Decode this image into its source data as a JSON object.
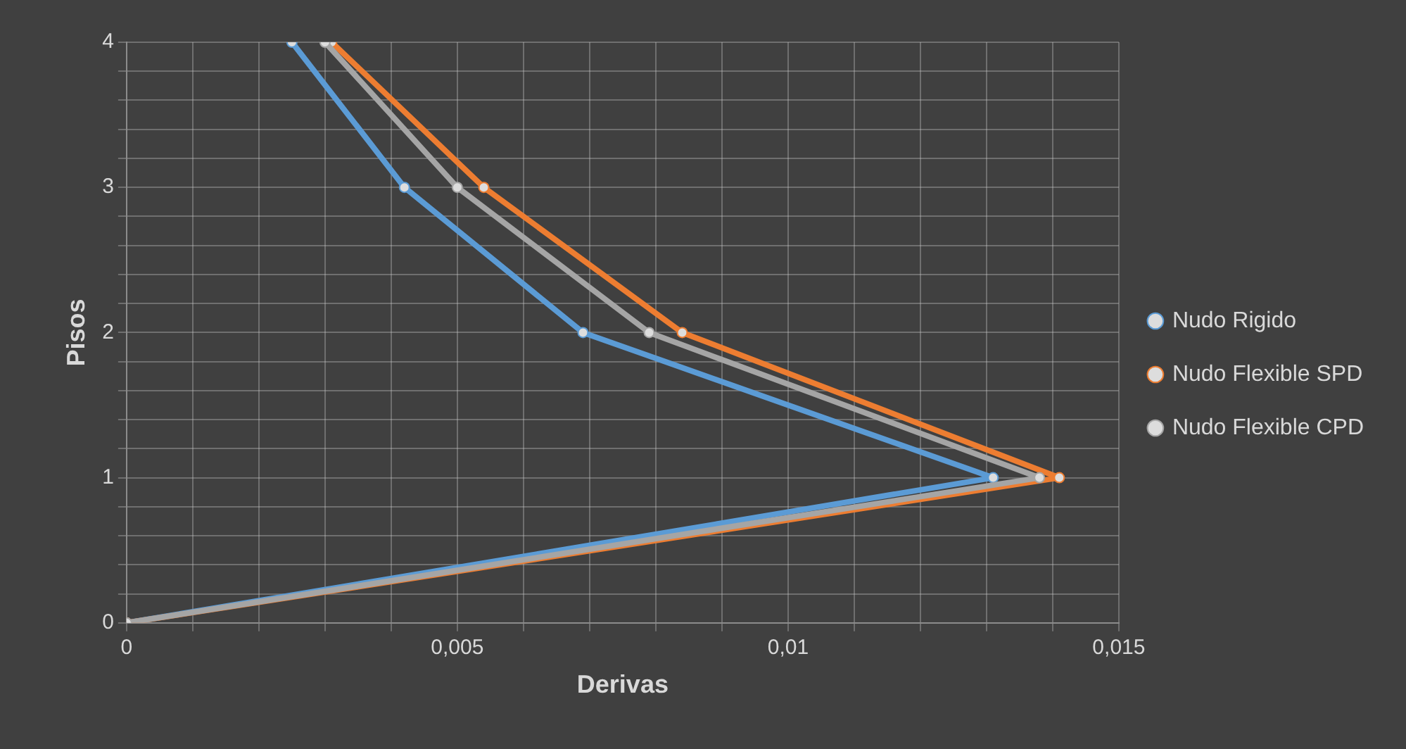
{
  "chart_data": {
    "type": "line",
    "xlabel": "Derivas",
    "ylabel": "Pisos",
    "series": [
      {
        "name": "Nudo Rigido",
        "color": "#5b9bd5",
        "x": [
          0,
          0.0131,
          0.0069,
          0.0042,
          0.0025
        ],
        "values": [
          0,
          1,
          2,
          3,
          4
        ]
      },
      {
        "name": "Nudo Flexible SPD",
        "color": "#ed7d31",
        "x": [
          0,
          0.0141,
          0.0084,
          0.0054,
          0.0031
        ],
        "values": [
          0,
          1,
          2,
          3,
          4
        ]
      },
      {
        "name": "Nudo Flexible CPD",
        "color": "#a5a5a5",
        "x": [
          0,
          0.0138,
          0.0079,
          0.005,
          0.003
        ],
        "values": [
          0,
          1,
          2,
          3,
          4
        ]
      }
    ],
    "xlim": [
      0,
      0.015
    ],
    "xticks": [
      0,
      {
        "value": 0.001,
        "label": null
      },
      {
        "value": 0.002,
        "label": null
      },
      {
        "value": 0.003,
        "label": null
      },
      {
        "value": 0.004,
        "label": null
      },
      {
        "value": 0.005,
        "label": "0,005"
      },
      {
        "value": 0.006,
        "label": null
      },
      {
        "value": 0.007,
        "label": null
      },
      {
        "value": 0.008,
        "label": null
      },
      {
        "value": 0.009,
        "label": null
      },
      {
        "value": 0.01,
        "label": "0,01"
      },
      {
        "value": 0.011,
        "label": null
      },
      {
        "value": 0.012,
        "label": null
      },
      {
        "value": 0.013,
        "label": null
      },
      {
        "value": 0.014,
        "label": null
      },
      {
        "value": 0.015,
        "label": "0,015"
      }
    ],
    "ylim": [
      0,
      4
    ],
    "yticks": [
      0,
      {
        "value": 0.2,
        "label": null
      },
      {
        "value": 0.4,
        "label": null
      },
      {
        "value": 0.6,
        "label": null
      },
      {
        "value": 0.8,
        "label": null
      },
      1,
      {
        "value": 1.2,
        "label": null
      },
      {
        "value": 1.4,
        "label": null
      },
      {
        "value": 1.6,
        "label": null
      },
      {
        "value": 1.8,
        "label": null
      },
      2,
      {
        "value": 2.2,
        "label": null
      },
      {
        "value": 2.4,
        "label": null
      },
      {
        "value": 2.6,
        "label": null
      },
      {
        "value": 2.8,
        "label": null
      },
      3,
      {
        "value": 3.2,
        "label": null
      },
      {
        "value": 3.4,
        "label": null
      },
      {
        "value": 3.6,
        "label": null
      },
      {
        "value": 3.8,
        "label": null
      },
      4
    ],
    "grid": true,
    "legend": "right",
    "marker": "circle",
    "line_style": "solid"
  }
}
